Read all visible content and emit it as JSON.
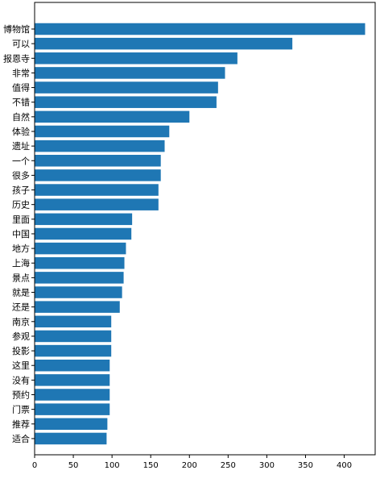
{
  "chart_data": {
    "type": "bar",
    "orientation": "horizontal",
    "categories": [
      "博物馆",
      "可以",
      "报恩寺",
      "非常",
      "值得",
      "不错",
      "自然",
      "体验",
      "遗址",
      "一个",
      "很多",
      "孩子",
      "历史",
      "里面",
      "中国",
      "地方",
      "上海",
      "景点",
      "就是",
      "还是",
      "南京",
      "参观",
      "投影",
      "这里",
      "没有",
      "预约",
      "门票",
      "推荐",
      "适合"
    ],
    "values": [
      427,
      333,
      262,
      246,
      237,
      235,
      200,
      174,
      168,
      163,
      163,
      160,
      160,
      126,
      125,
      118,
      116,
      115,
      113,
      110,
      99,
      99,
      99,
      97,
      97,
      97,
      97,
      94,
      93
    ],
    "xlim": [
      0,
      440
    ],
    "xticks": [
      0,
      50,
      100,
      150,
      200,
      250,
      300,
      350,
      400
    ],
    "bar_color": "#1f77b4",
    "grid": false,
    "title": "",
    "xlabel": "",
    "ylabel": ""
  }
}
